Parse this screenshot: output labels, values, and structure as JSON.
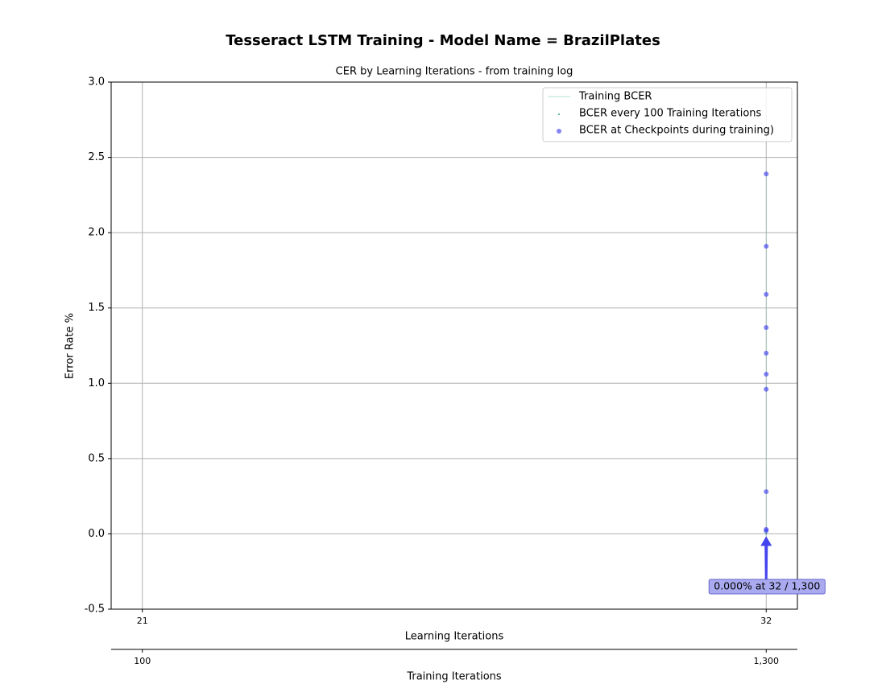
{
  "chart_data": {
    "type": "scatter",
    "title": "Tesseract LSTM Training - Model Name = BrazilPlates",
    "subtitle": "CER by Learning Iterations - from training log",
    "x_label": "Learning Iterations",
    "x2_label": "Training Iterations",
    "y_label": "Error Rate %",
    "xlim": [
      20.45,
      32.55
    ],
    "xticks": [
      21,
      32
    ],
    "x2lim": [
      40,
      1360
    ],
    "x2ticks": [
      100,
      {
        "value": 1300,
        "label": "1,300"
      }
    ],
    "ylim": [
      -0.5,
      3.0
    ],
    "yticks": [
      -0.5,
      {
        "value": 0,
        "label": "0.0"
      },
      0.5,
      {
        "value": 1,
        "label": "1.0"
      },
      1.5,
      {
        "value": 2,
        "label": "2.0"
      },
      2.5,
      {
        "value": 3,
        "label": "3.0"
      }
    ],
    "grid": true,
    "legend": "upper right",
    "series": [
      {
        "name": "Training BCER",
        "kind": "line",
        "color": "#66c2a5",
        "x": [
          32,
          32,
          32,
          32,
          32,
          32,
          32,
          32,
          32,
          32
        ],
        "values": [
          2.39,
          1.91,
          1.59,
          1.37,
          1.2,
          1.06,
          0.96,
          0.28,
          0.03,
          0.02
        ]
      },
      {
        "name": "BCER every 100 Training Iterations",
        "kind": "scatter",
        "color": "#2ca089",
        "x": [
          32
        ],
        "values": [
          0.0
        ]
      },
      {
        "name": "BCER at Checkpoints during training)",
        "kind": "scatter",
        "color": "#3333ee",
        "x": [
          32,
          32,
          32,
          32,
          32,
          32,
          32,
          32,
          32,
          32
        ],
        "values": [
          2.39,
          1.91,
          1.59,
          1.37,
          1.2,
          1.06,
          0.96,
          0.28,
          0.03,
          0.02
        ]
      }
    ],
    "annotation": {
      "text": "0.000% at 32 / 1,300",
      "x": 32,
      "y": 0
    }
  }
}
